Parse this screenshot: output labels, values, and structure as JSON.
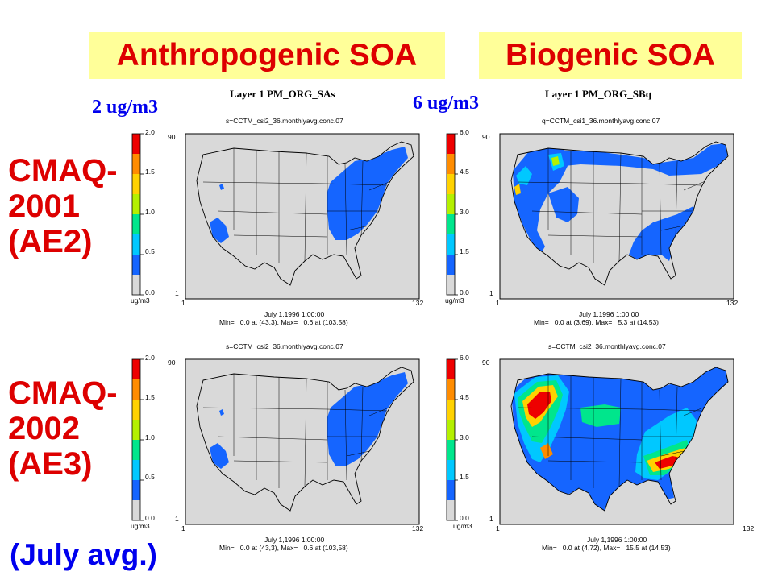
{
  "headers": {
    "left": "Anthropogenic SOA",
    "right": "Biogenic SOA"
  },
  "scale_notes": {
    "left": "2 ug/m3",
    "right": "6 ug/m3"
  },
  "layer_titles": {
    "left": "Layer 1  PM_ORG_SAs",
    "right": "Layer 1  PM_ORG_SBq"
  },
  "rows": [
    {
      "label_lines": [
        "CMAQ-",
        "2001",
        "(AE2)"
      ]
    },
    {
      "label_lines": [
        "CMAQ-",
        "2002",
        "(AE3)"
      ]
    }
  ],
  "footnote": "(July avg.)",
  "colors": {
    "header_bg": "#ffff99",
    "header_text": "#dd0000",
    "note_text": "#0000ee",
    "map_bg": "#d9d9d9"
  },
  "colorbar_colors": [
    "#d9d9d9",
    "#1565ff",
    "#00c8ff",
    "#00e68c",
    "#b4f000",
    "#ffd200",
    "#ff8c00",
    "#ee0000"
  ],
  "panels": [
    {
      "id": "p1",
      "file": "s=CCTM_csi2_36.monthlyavg.conc.07",
      "ticks": [
        "2.0",
        "1.5",
        "1.0",
        "0.5",
        "0.0"
      ],
      "unit": "ug/m3",
      "y_top": "90",
      "x_left": "1",
      "x_right": "132",
      "y_bottom": "1",
      "date": "July 1,1996 1:00:00",
      "min_label": "Min=",
      "min_value": "0.0 at (43,3), Max=",
      "max_value": "0.6 at (103,58)"
    },
    {
      "id": "p2",
      "file": "q=CCTM_csi1_36.monthlyavg.conc.07",
      "ticks": [
        "6.0",
        "4.5",
        "3.0",
        "1.5",
        "0.0"
      ],
      "unit": "ug/m3",
      "y_top": "90",
      "x_left": "1",
      "x_right": "132",
      "y_bottom": "1",
      "date": "July 1,1996 1:00:00",
      "min_label": "Min=",
      "min_value": "0.0 at (3,69), Max=",
      "max_value": "5.3 at (14,53)"
    },
    {
      "id": "p3",
      "file": "s=CCTM_csi2_36.monthlyavg.conc.07",
      "ticks": [
        "2.0",
        "1.5",
        "1.0",
        "0.5",
        "0.0"
      ],
      "unit": "ug/m3",
      "y_top": "90",
      "x_left": "1",
      "x_right": "132",
      "y_bottom": "1",
      "date": "July 1,1996 1:00:00",
      "min_label": "Min=",
      "min_value": "0.0 at (43,3), Max=",
      "max_value": "0.6 at (103,58)"
    },
    {
      "id": "p4",
      "file": "s=CCTM_csi2_36.monthlyavg.conc.07",
      "ticks": [
        "6.0",
        "4.5",
        "3.0",
        "1.5",
        "0.0"
      ],
      "unit": "ug/m3",
      "y_top": "90",
      "x_left": "1",
      "x_right": "132",
      "y_bottom": "1",
      "date": "July 1,1996 1:00:00",
      "min_label": "Min=",
      "min_value": "0.0 at (4,72), Max=",
      "max_value": "15.5 at (14,53)"
    }
  ]
}
